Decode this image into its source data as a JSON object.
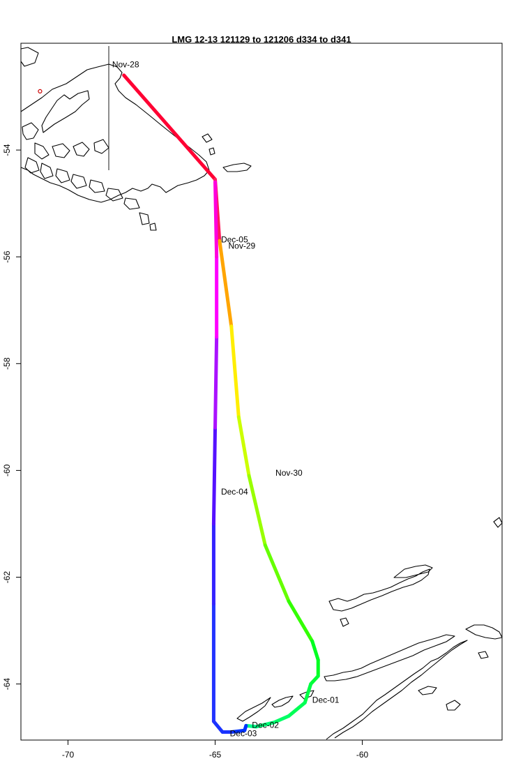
{
  "title": "LMG   12-13    121129 to 121206    d334 to d341",
  "axes": {
    "x_ticks": [
      {
        "value": -70,
        "label": "-70"
      },
      {
        "value": -65,
        "label": "-65"
      },
      {
        "value": -60,
        "label": "-60"
      }
    ],
    "y_ticks": [
      {
        "value": -54,
        "label": "-54"
      },
      {
        "value": -56,
        "label": "-56"
      },
      {
        "value": -58,
        "label": "-58"
      },
      {
        "value": -60,
        "label": "-60"
      },
      {
        "value": -62,
        "label": "-62"
      },
      {
        "value": -64,
        "label": "-64"
      }
    ],
    "xlim": [
      -71.6,
      -55.25
    ],
    "ylim": [
      -65.05,
      -52.0
    ]
  },
  "chart_data": {
    "type": "line",
    "title": "LMG   12-13    121129 to 121206    d334 to d341",
    "xlabel": "",
    "ylabel": "",
    "xlim": [
      -71.6,
      -55.25
    ],
    "ylim": [
      -65.05,
      -52.0
    ],
    "grid": false,
    "series": [
      {
        "values": [
          {
            "lon": -68.1,
            "lat": -52.6,
            "color": "#ff0033"
          },
          {
            "lon": -65.0,
            "lat": -54.55,
            "color": "#ff1a5a"
          },
          {
            "lon": -64.85,
            "lat": -55.7,
            "color": "#ffa500"
          },
          {
            "lon": -64.45,
            "lat": -57.3,
            "color": "#ffee00"
          },
          {
            "lon": -64.2,
            "lat": -59.0,
            "color": "#ccff00"
          },
          {
            "lon": -63.85,
            "lat": -60.1,
            "color": "#99ff00"
          },
          {
            "lon": -63.3,
            "lat": -61.4,
            "color": "#66ff00"
          },
          {
            "lon": -62.5,
            "lat": -62.45,
            "color": "#33ff00"
          },
          {
            "lon": -61.7,
            "lat": -63.2,
            "color": "#00ff22"
          },
          {
            "lon": -61.5,
            "lat": -63.55,
            "color": "#00ff22"
          },
          {
            "lon": -61.5,
            "lat": -63.85,
            "color": "#00ff33"
          },
          {
            "lon": -61.75,
            "lat": -64.0,
            "color": "#00ff44"
          },
          {
            "lon": -61.95,
            "lat": -64.35,
            "color": "#00ff55"
          },
          {
            "lon": -62.5,
            "lat": -64.6,
            "color": "#00ff66"
          },
          {
            "lon": -63.0,
            "lat": -64.72,
            "color": "#00ff77"
          },
          {
            "lon": -63.6,
            "lat": -64.8,
            "color": "#00ff88"
          },
          {
            "lon": -63.95,
            "lat": -64.78,
            "color": "#0033ff"
          },
          {
            "lon": -64.0,
            "lat": -64.87,
            "color": "#0033ff"
          },
          {
            "lon": -64.45,
            "lat": -64.9,
            "color": "#1a33ff"
          },
          {
            "lon": -64.75,
            "lat": -64.9,
            "color": "#1a33ff"
          },
          {
            "lon": -65.05,
            "lat": -64.7,
            "color": "#2233ff"
          },
          {
            "lon": -65.05,
            "lat": -62.5,
            "color": "#3322ff"
          },
          {
            "lon": -65.05,
            "lat": -61.0,
            "color": "#5511ff"
          },
          {
            "lon": -65.0,
            "lat": -59.2,
            "color": "#aa11ff"
          },
          {
            "lon": -64.95,
            "lat": -57.5,
            "color": "#ff00ff"
          },
          {
            "lon": -64.95,
            "lat": -56.0,
            "color": "#ff00dd"
          },
          {
            "lon": -65.0,
            "lat": -54.6,
            "color": "#ff1a9a"
          }
        ]
      }
    ],
    "date_labels": [
      {
        "text": "Nov-28",
        "lon": -68.5,
        "lat": -52.45
      },
      {
        "text": "Nov-29",
        "lon": -64.55,
        "lat": -55.85
      },
      {
        "text": "Nov-30",
        "lon": -62.95,
        "lat": -60.1
      },
      {
        "text": "Dec-01",
        "lon": -61.7,
        "lat": -64.35
      },
      {
        "text": "Dec-02",
        "lon": -63.75,
        "lat": -64.82
      },
      {
        "text": "Dec-03",
        "lon": -64.5,
        "lat": -64.98
      },
      {
        "text": "Dec-04",
        "lon": -64.8,
        "lat": -60.45
      },
      {
        "text": "Dec-05",
        "lon": -64.8,
        "lat": -55.73
      }
    ],
    "marker": {
      "lon": -70.95,
      "lat": -52.9,
      "color": "#cc0000"
    }
  }
}
